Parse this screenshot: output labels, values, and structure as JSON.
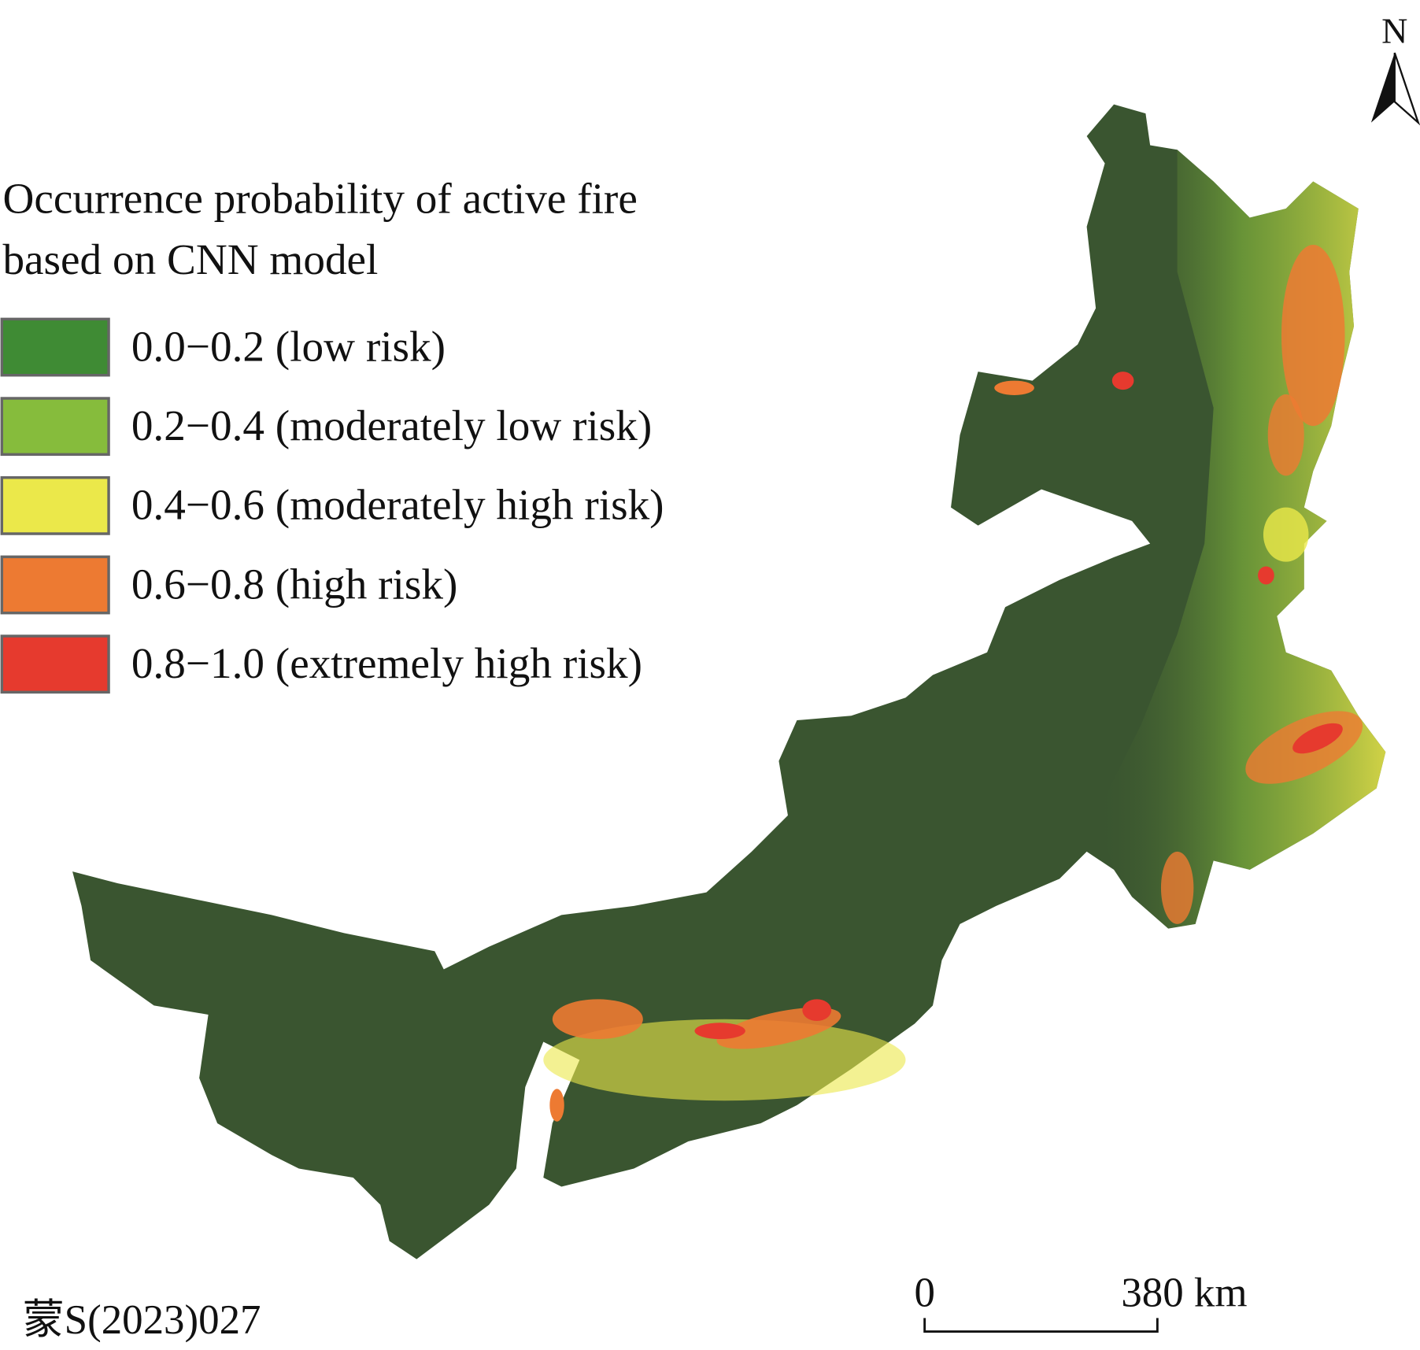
{
  "legend": {
    "title": [
      "Occurrence probability of active fire",
      "based on CNN model"
    ],
    "items": [
      {
        "label": "0.0−0.2 (low risk)",
        "color": "#3f8b34"
      },
      {
        "label": "0.2−0.4 (moderately low risk)",
        "color": "#86bc3c"
      },
      {
        "label": "0.4−0.6 (moderately high risk)",
        "color": "#ebe84a"
      },
      {
        "label": "0.6−0.8 (high risk)",
        "color": "#ed7a32"
      },
      {
        "label": "0.8−1.0 (extremely high risk)",
        "color": "#e63a2e"
      }
    ]
  },
  "north_arrow": {
    "label": "N"
  },
  "scale_bar": {
    "start_label": "0",
    "end_label": "380 km"
  },
  "map_number": "蒙S(2023)027"
}
